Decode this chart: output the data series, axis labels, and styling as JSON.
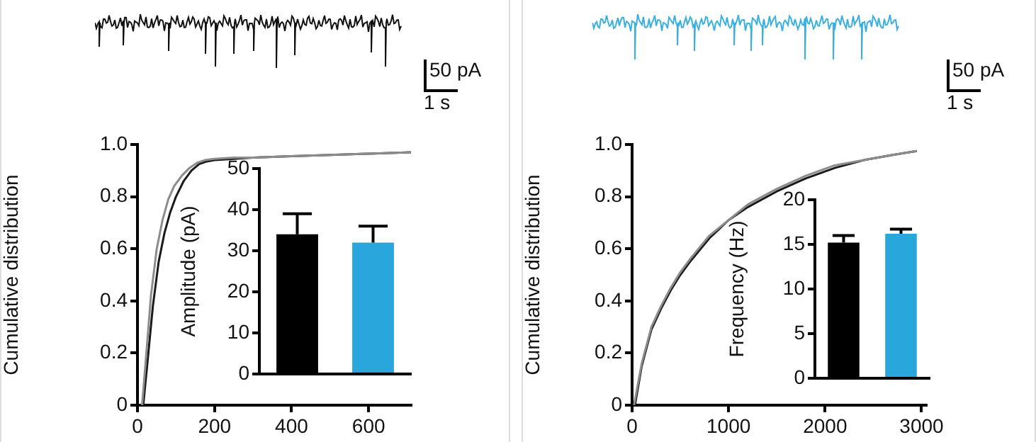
{
  "chart_data": [
    {
      "type": "line",
      "ylabel": "Cumulative distribution",
      "xlim": [
        0,
        710
      ],
      "xticks": [
        0,
        200,
        400,
        600
      ],
      "ylim": [
        0,
        1
      ],
      "yticks": [
        0,
        0.2,
        0.4,
        0.6,
        0.8,
        {
          "value": 1,
          "label": "1.0"
        }
      ],
      "annotations": [
        "50 pA",
        "1 s"
      ],
      "series": [
        {
          "color": "#8c8c8c",
          "x": [
            12,
            22,
            35,
            50,
            65,
            80,
            95,
            115,
            135,
            155,
            175,
            200,
            250,
            300,
            400,
            500,
            600,
            710
          ],
          "values": [
            0,
            0.18,
            0.42,
            0.6,
            0.71,
            0.79,
            0.84,
            0.88,
            0.91,
            0.93,
            0.94,
            0.945,
            0.95,
            0.95,
            0.955,
            0.96,
            0.965,
            0.97
          ]
        },
        {
          "color": "#1a1a1a",
          "x": [
            15,
            25,
            40,
            55,
            70,
            85,
            100,
            120,
            140,
            160,
            180,
            200,
            250,
            300,
            400,
            500,
            600,
            710
          ],
          "values": [
            0,
            0.15,
            0.38,
            0.55,
            0.66,
            0.74,
            0.8,
            0.86,
            0.9,
            0.925,
            0.935,
            0.94,
            0.945,
            0.95,
            0.955,
            0.96,
            0.965,
            0.97
          ]
        }
      ]
    },
    {
      "type": "bar",
      "ylabel": "Amplitude (pA)",
      "categories": [
        null,
        null
      ],
      "values": [
        34,
        32
      ],
      "colors": [
        "#000000",
        "#29a6dc"
      ],
      "errors": [
        [
          34,
          39
        ],
        [
          32,
          36
        ]
      ],
      "ylim": [
        0,
        50
      ],
      "yticks": [
        0,
        10,
        20,
        30,
        40,
        50
      ]
    },
    {
      "type": "line",
      "ylabel": "Cumulative distribution",
      "xlim": [
        0,
        3050
      ],
      "xticks": [
        0,
        1000,
        2000,
        3000
      ],
      "ylim": [
        0,
        1
      ],
      "yticks": [
        0,
        0.2,
        0.4,
        0.6,
        0.8,
        {
          "value": 1,
          "label": "1.0"
        }
      ],
      "annotations": [
        "50 pA",
        "1 s"
      ],
      "series": [
        {
          "color": "#8c8c8c",
          "x": [
            20,
            100,
            200,
            300,
            400,
            500,
            600,
            800,
            1000,
            1200,
            1500,
            1800,
            2100,
            2400,
            2700,
            2950
          ],
          "values": [
            0,
            0.16,
            0.3,
            0.38,
            0.45,
            0.51,
            0.56,
            0.65,
            0.71,
            0.77,
            0.83,
            0.88,
            0.92,
            0.94,
            0.96,
            0.975
          ]
        },
        {
          "color": "#1a1a1a",
          "x": [
            30,
            100,
            200,
            300,
            400,
            500,
            600,
            800,
            1000,
            1200,
            1500,
            1800,
            2100,
            2400,
            2700,
            2950
          ],
          "values": [
            0,
            0.15,
            0.29,
            0.37,
            0.44,
            0.5,
            0.55,
            0.64,
            0.71,
            0.76,
            0.82,
            0.87,
            0.91,
            0.94,
            0.96,
            0.975
          ]
        }
      ]
    },
    {
      "type": "bar",
      "ylabel": "Frequency (Hz)",
      "categories": [
        null,
        null
      ],
      "values": [
        15.2,
        16.2
      ],
      "colors": [
        "#000000",
        "#29a6dc"
      ],
      "errors": [
        [
          15.2,
          16
        ],
        [
          16.2,
          16.7
        ]
      ],
      "ylim": [
        0,
        20
      ],
      "yticks": [
        0,
        5,
        10,
        15,
        20
      ]
    }
  ]
}
